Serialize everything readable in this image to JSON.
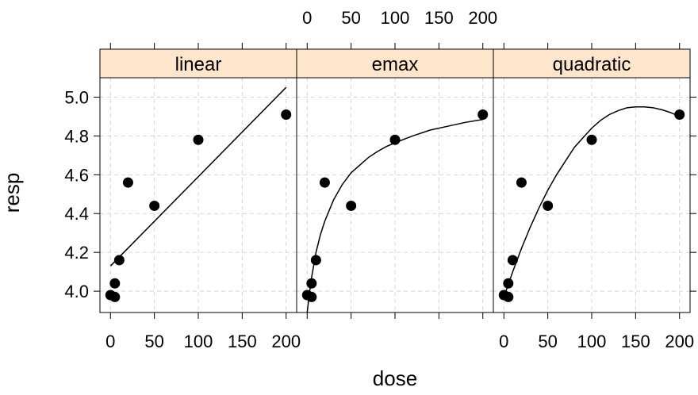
{
  "chart_data": {
    "type": "scatter",
    "xlabel": "dose",
    "ylabel": "resp",
    "x_ticks": [
      0,
      50,
      100,
      150,
      200
    ],
    "y_ticks": [
      4.0,
      4.2,
      4.4,
      4.6,
      4.8,
      5.0
    ],
    "y_tick_labels": [
      "4.0",
      "4.2",
      "4.4",
      "4.6",
      "4.8",
      "5.0"
    ],
    "xlim": [
      -12,
      212
    ],
    "ylim": [
      3.89,
      5.1
    ],
    "grid": true,
    "panels": [
      {
        "name": "linear",
        "points": [
          {
            "x": 0,
            "y": 3.98
          },
          {
            "x": 5,
            "y": 4.04
          },
          {
            "x": 5,
            "y": 3.97
          },
          {
            "x": 10,
            "y": 4.16
          },
          {
            "x": 20,
            "y": 4.56
          },
          {
            "x": 50,
            "y": 4.44
          },
          {
            "x": 100,
            "y": 4.78
          },
          {
            "x": 200,
            "y": 4.91
          }
        ],
        "curve": [
          {
            "x": 0,
            "y": 4.13
          },
          {
            "x": 200,
            "y": 5.05
          }
        ]
      },
      {
        "name": "emax",
        "points": [
          {
            "x": 0,
            "y": 3.98
          },
          {
            "x": 5,
            "y": 4.04
          },
          {
            "x": 5,
            "y": 3.97
          },
          {
            "x": 10,
            "y": 4.16
          },
          {
            "x": 20,
            "y": 4.56
          },
          {
            "x": 50,
            "y": 4.44
          },
          {
            "x": 100,
            "y": 4.78
          },
          {
            "x": 200,
            "y": 4.91
          }
        ],
        "curve": [
          {
            "x": 0,
            "y": 3.89
          },
          {
            "x": 2,
            "y": 3.97
          },
          {
            "x": 5,
            "y": 4.07
          },
          {
            "x": 10,
            "y": 4.2
          },
          {
            "x": 15,
            "y": 4.29
          },
          {
            "x": 20,
            "y": 4.36
          },
          {
            "x": 30,
            "y": 4.47
          },
          {
            "x": 40,
            "y": 4.55
          },
          {
            "x": 50,
            "y": 4.61
          },
          {
            "x": 60,
            "y": 4.65
          },
          {
            "x": 70,
            "y": 4.69
          },
          {
            "x": 80,
            "y": 4.72
          },
          {
            "x": 90,
            "y": 4.745
          },
          {
            "x": 100,
            "y": 4.765
          },
          {
            "x": 120,
            "y": 4.8
          },
          {
            "x": 140,
            "y": 4.83
          },
          {
            "x": 160,
            "y": 4.85
          },
          {
            "x": 180,
            "y": 4.87
          },
          {
            "x": 200,
            "y": 4.885
          }
        ]
      },
      {
        "name": "quadratic",
        "points": [
          {
            "x": 0,
            "y": 3.98
          },
          {
            "x": 5,
            "y": 4.04
          },
          {
            "x": 5,
            "y": 3.97
          },
          {
            "x": 10,
            "y": 4.16
          },
          {
            "x": 20,
            "y": 4.56
          },
          {
            "x": 50,
            "y": 4.44
          },
          {
            "x": 100,
            "y": 4.78
          },
          {
            "x": 200,
            "y": 4.91
          }
        ],
        "curve": [
          {
            "x": 0,
            "y": 3.97
          },
          {
            "x": 10,
            "y": 4.1
          },
          {
            "x": 20,
            "y": 4.22
          },
          {
            "x": 30,
            "y": 4.33
          },
          {
            "x": 40,
            "y": 4.43
          },
          {
            "x": 50,
            "y": 4.52
          },
          {
            "x": 60,
            "y": 4.6
          },
          {
            "x": 70,
            "y": 4.67
          },
          {
            "x": 80,
            "y": 4.74
          },
          {
            "x": 90,
            "y": 4.79
          },
          {
            "x": 100,
            "y": 4.84
          },
          {
            "x": 110,
            "y": 4.88
          },
          {
            "x": 120,
            "y": 4.91
          },
          {
            "x": 130,
            "y": 4.93
          },
          {
            "x": 140,
            "y": 4.945
          },
          {
            "x": 150,
            "y": 4.95
          },
          {
            "x": 160,
            "y": 4.95
          },
          {
            "x": 170,
            "y": 4.945
          },
          {
            "x": 180,
            "y": 4.935
          },
          {
            "x": 190,
            "y": 4.92
          },
          {
            "x": 200,
            "y": 4.9
          }
        ]
      }
    ],
    "strip_color": "#ffe5cc"
  }
}
